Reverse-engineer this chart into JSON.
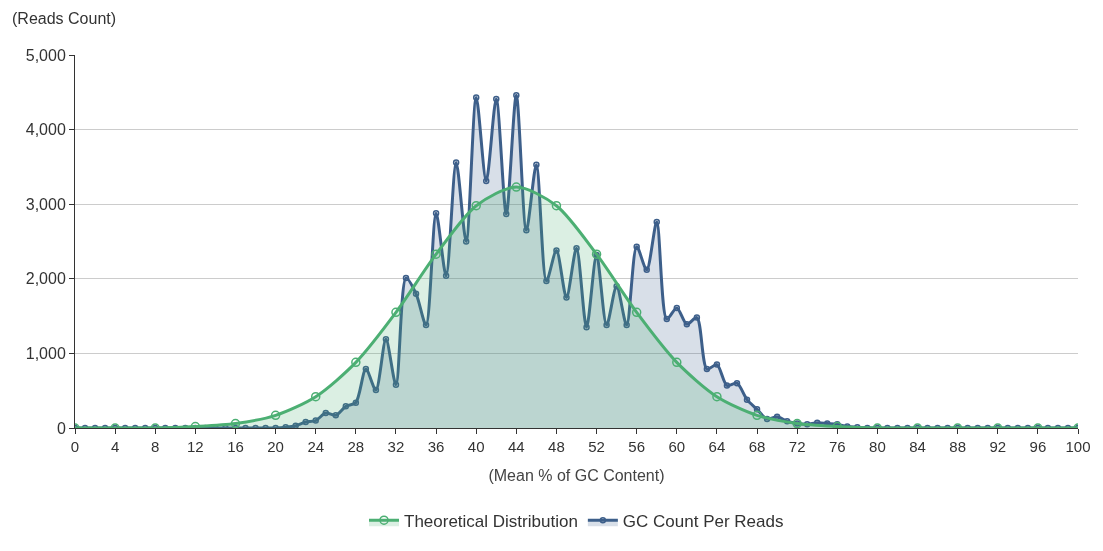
{
  "chart_data": {
    "type": "area",
    "xlabel": "(Mean % of GC Content)",
    "ylabel": "(Reads Count)",
    "xlim": [
      0,
      100
    ],
    "xticks": [
      0,
      4,
      8,
      12,
      16,
      20,
      24,
      28,
      32,
      36,
      40,
      44,
      48,
      52,
      56,
      60,
      64,
      68,
      72,
      76,
      80,
      84,
      88,
      92,
      96,
      100
    ],
    "ylim": [
      0,
      5000
    ],
    "yticks": [
      {
        "value": 0,
        "label": "0"
      },
      {
        "value": 1000,
        "label": "1,000"
      },
      {
        "value": 2000,
        "label": "2,000"
      },
      {
        "value": 3000,
        "label": "3,000"
      },
      {
        "value": 4000,
        "label": "4,000"
      },
      {
        "value": 5000,
        "label": "5,000"
      }
    ],
    "grid": "y",
    "legend": "bottom",
    "marker": "circle",
    "line_style": "solid",
    "series": [
      {
        "name": "Theoretical Distribution",
        "color": "#4caf73",
        "x": [
          0,
          4,
          8,
          12,
          16,
          20,
          24,
          28,
          32,
          36,
          40,
          44,
          48,
          52,
          56,
          60,
          64,
          68,
          72,
          76,
          80,
          84,
          88,
          92,
          96,
          100
        ],
        "values": [
          0,
          0,
          0,
          20,
          60,
          170,
          420,
          880,
          1550,
          2330,
          2980,
          3230,
          2980,
          2330,
          1550,
          880,
          420,
          170,
          60,
          20,
          0,
          0,
          0,
          0,
          0,
          0
        ]
      },
      {
        "name": "GC Count Per Reads",
        "color": "#3d5f8a",
        "x": [
          0,
          1,
          2,
          3,
          4,
          5,
          6,
          7,
          8,
          9,
          10,
          11,
          12,
          13,
          14,
          15,
          16,
          17,
          18,
          19,
          20,
          21,
          22,
          23,
          24,
          25,
          26,
          27,
          28,
          29,
          30,
          31,
          32,
          33,
          34,
          35,
          36,
          37,
          38,
          39,
          40,
          41,
          42,
          43,
          44,
          45,
          46,
          47,
          48,
          49,
          50,
          51,
          52,
          53,
          54,
          55,
          56,
          57,
          58,
          59,
          60,
          61,
          62,
          63,
          64,
          65,
          66,
          67,
          68,
          69,
          70,
          71,
          72,
          73,
          74,
          75,
          76,
          77,
          78,
          79,
          80,
          81,
          82,
          83,
          84,
          85,
          86,
          87,
          88,
          89,
          90,
          91,
          92,
          93,
          94,
          95,
          96,
          97,
          98,
          99,
          100
        ],
        "values": [
          0,
          0,
          0,
          0,
          0,
          0,
          0,
          0,
          0,
          0,
          0,
          0,
          0,
          0,
          0,
          0,
          0,
          0,
          0,
          0,
          0,
          10,
          30,
          80,
          100,
          200,
          170,
          290,
          340,
          790,
          510,
          1190,
          580,
          2010,
          1800,
          1380,
          2880,
          2040,
          3560,
          2500,
          4430,
          3310,
          4410,
          2870,
          4460,
          2650,
          3530,
          1970,
          2380,
          1750,
          2410,
          1350,
          2320,
          1380,
          1900,
          1380,
          2430,
          2120,
          2760,
          1460,
          1610,
          1390,
          1480,
          790,
          850,
          570,
          600,
          380,
          250,
          120,
          150,
          90,
          60,
          50,
          70,
          60,
          50,
          20,
          10,
          0,
          0,
          0,
          0,
          0,
          0,
          0,
          0,
          0,
          0,
          0,
          0,
          0,
          0,
          0,
          0,
          0,
          0,
          0,
          0,
          0,
          0
        ]
      }
    ]
  }
}
